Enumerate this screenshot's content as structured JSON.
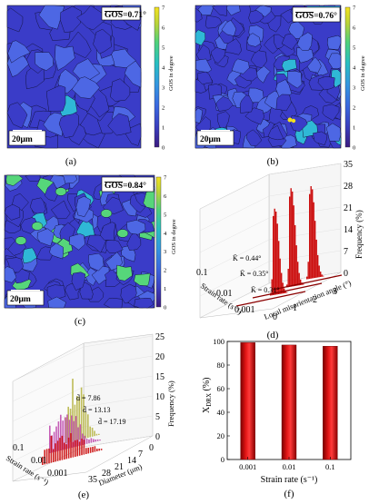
{
  "panels": {
    "a": {
      "label": "(a)",
      "gos": "0.71°",
      "scalebar": "20μm"
    },
    "b": {
      "label": "(b)",
      "gos": "0.76°",
      "scalebar": "20μm"
    },
    "c": {
      "label": "(c)",
      "gos": "0.84°",
      "scalebar": "20μm"
    },
    "d": {
      "label": "(d)"
    },
    "e": {
      "label": "(e)"
    },
    "f": {
      "label": "(f)"
    }
  },
  "gos_prefix": "GOS",
  "colorbar": {
    "ticks": [
      "0",
      "1",
      "2",
      "3",
      "4",
      "5",
      "6",
      "7"
    ],
    "label": "GOS in degree",
    "colors": [
      "#3b1a80",
      "#3a3fc0",
      "#3a6ae0",
      "#3497e0",
      "#27bfc2",
      "#4fd27a",
      "#b7d33a",
      "#f4e21e"
    ]
  },
  "colors": {
    "grain_base": "#3a3cc8",
    "grain_light": "#4d67e4",
    "grain_teal": "#2fb8d6",
    "grain_green": "#56d67a",
    "yellow": "#f2df1f",
    "red_bar": "#cc1010",
    "dark_red": "#8b0000"
  },
  "chart_data": [
    {
      "type": "bar",
      "panel": "d",
      "zlabel": "Frequency (%)",
      "xlabel": "Local misorientation angle (°)",
      "ylabel": "Strain rate (s⁻¹)",
      "z_ticks": [
        "0",
        "7",
        "14",
        "21",
        "28",
        "35"
      ],
      "x_ticks": [
        "0",
        "1",
        "2",
        "3"
      ],
      "y_ticks": [
        "0.1",
        "0.01",
        "0.001"
      ],
      "annotations": [
        "K̄ = 0.44°",
        "K̄ = 0.35°",
        "K̄ = 0.31°"
      ],
      "series": [
        {
          "name": "0.001",
          "peak_angle": 0.31,
          "peak_freq": 28
        },
        {
          "name": "0.01",
          "peak_angle": 0.35,
          "peak_freq": 32
        },
        {
          "name": "0.1",
          "peak_angle": 0.44,
          "peak_freq": 30
        }
      ]
    },
    {
      "type": "bar",
      "panel": "e",
      "zlabel": "Frequency (%)",
      "xlabel": "Diameter (μm)",
      "ylabel": "Strain rate (s⁻¹)",
      "z_ticks": [
        "0",
        "5",
        "10",
        "15",
        "20",
        "25"
      ],
      "x_ticks": [
        "0",
        "7",
        "14",
        "21",
        "28",
        "35"
      ],
      "y_ticks": [
        "0.1",
        "0.01",
        "0.001"
      ],
      "annotations": [
        "d̄ = 7.86",
        "d̄ = 13.13",
        "d̄ = 17.19"
      ],
      "series": [
        {
          "name": "0.001",
          "mean_diameter": 7.86,
          "color": "#b8b64a"
        },
        {
          "name": "0.01",
          "mean_diameter": 13.13,
          "color": "#c050b0"
        },
        {
          "name": "0.1",
          "mean_diameter": 17.19,
          "color": "#cc1010"
        }
      ]
    },
    {
      "type": "bar",
      "panel": "f",
      "categories": [
        "0.001",
        "0.01",
        "0.1"
      ],
      "values": [
        99,
        97,
        96
      ],
      "xlabel": "Strain rate (s⁻¹)",
      "ylabel": "XDRX (%)",
      "ylim": [
        0,
        100
      ],
      "y_ticks": [
        "0",
        "20",
        "40",
        "60",
        "80",
        "100"
      ]
    }
  ]
}
